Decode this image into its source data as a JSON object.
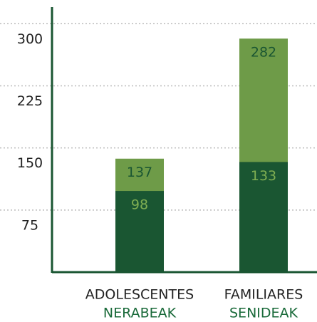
{
  "chart_data": {
    "type": "bar",
    "categories": [
      "ADOLESCENTES",
      "FAMILIARES"
    ],
    "category_sublabels": [
      "NERABEAK",
      "SENIDEAK"
    ],
    "series": [
      {
        "color": "#6e9b48",
        "label_color": "#1a5632",
        "values": [
          137,
          282
        ]
      },
      {
        "color": "#1a5632",
        "label_color": "#7fae52",
        "values": [
          98,
          133
        ]
      }
    ],
    "ylim": [
      0,
      320
    ],
    "yticks": [
      75,
      150,
      225,
      300
    ],
    "grid": true
  }
}
